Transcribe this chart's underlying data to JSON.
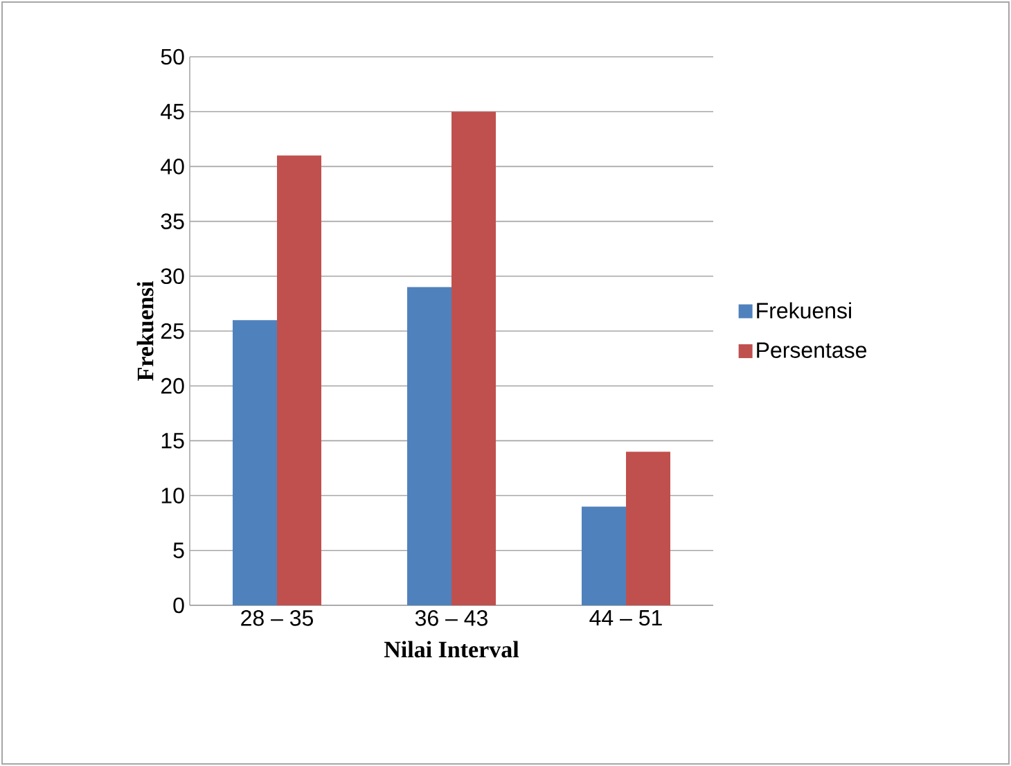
{
  "chart_data": {
    "type": "bar",
    "xlabel": "Nilai Interval",
    "ylabel": "Frekuensi",
    "categories": [
      "28 – 35",
      "36 – 43",
      "44 – 51"
    ],
    "series": [
      {
        "name": "Frekuensi",
        "color": "#4f81bd",
        "values": [
          26,
          29,
          9
        ]
      },
      {
        "name": "Persentase",
        "color": "#c0504d",
        "values": [
          41,
          45,
          14
        ]
      }
    ],
    "ylim": [
      0,
      50
    ],
    "yticks": [
      0,
      5,
      10,
      15,
      20,
      25,
      30,
      35,
      40,
      45,
      50
    ],
    "grid": "y",
    "legend": "right"
  }
}
